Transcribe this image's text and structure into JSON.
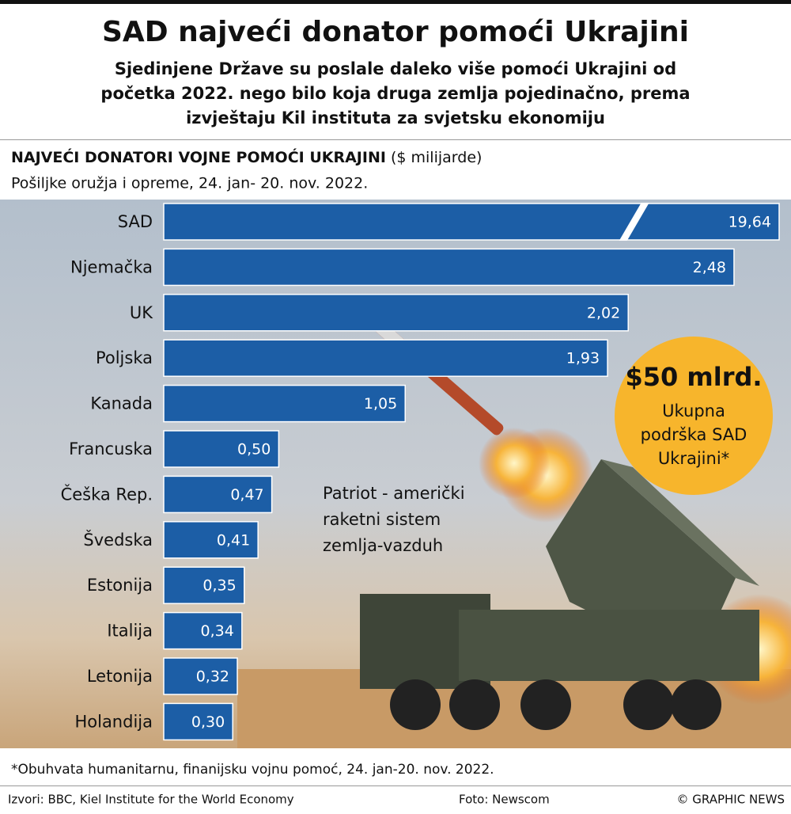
{
  "chart_data": {
    "type": "bar",
    "orientation": "horizontal",
    "title": "SAD najveći donator pomoći Ukrajini",
    "subtitle": [
      "Sjedinjene Države su poslale daleko više  pomoći Ukrajini od",
      "početka 2022. nego bilo koja druga zemlja pojedinačno, prema",
      "izvještaju Kil instituta za svjetsku ekonomiju"
    ],
    "heading": "NAJVEĆI DONATORI VOJNE POMOĆI UKRAJINI",
    "unit": "($ milijarde)",
    "subheading": "Pošiljke oružja i opreme, 24. jan- 20. nov. 2022.",
    "categories": [
      "SAD",
      "Njemačka",
      "UK",
      "Poljska",
      "Kanada",
      "Francuska",
      "Češka Rep.",
      "Švedska",
      "Estonija",
      "Italija",
      "Letonija",
      "Holandija"
    ],
    "values": [
      19.64,
      2.48,
      2.02,
      1.93,
      1.05,
      0.5,
      0.47,
      0.41,
      0.35,
      0.34,
      0.32,
      0.3
    ],
    "value_labels": [
      "19,64",
      "2,48",
      "2,02",
      "1,93",
      "1,05",
      "0,50",
      "0,47",
      "0,41",
      "0,35",
      "0,34",
      "0,32",
      "0,30"
    ],
    "color": "#1c5ea6",
    "annotation": [
      "Patriot - američki",
      "raketni sistem",
      "zemlja-vazduh"
    ],
    "callout_value": "$50 mlrd.",
    "callout_text": [
      "Ukupna",
      "podrška SAD",
      "Ukrajini*"
    ],
    "footnote": "*Obuhvata humanitarnu, finanijsku vojnu pomoć,  24. jan-20. nov. 2022.",
    "source": "Izvori: BBC, Kiel Institute for the World Economy",
    "photo_credit": "Foto: Newscom",
    "credit": "© GRAPHIC NEWS"
  }
}
